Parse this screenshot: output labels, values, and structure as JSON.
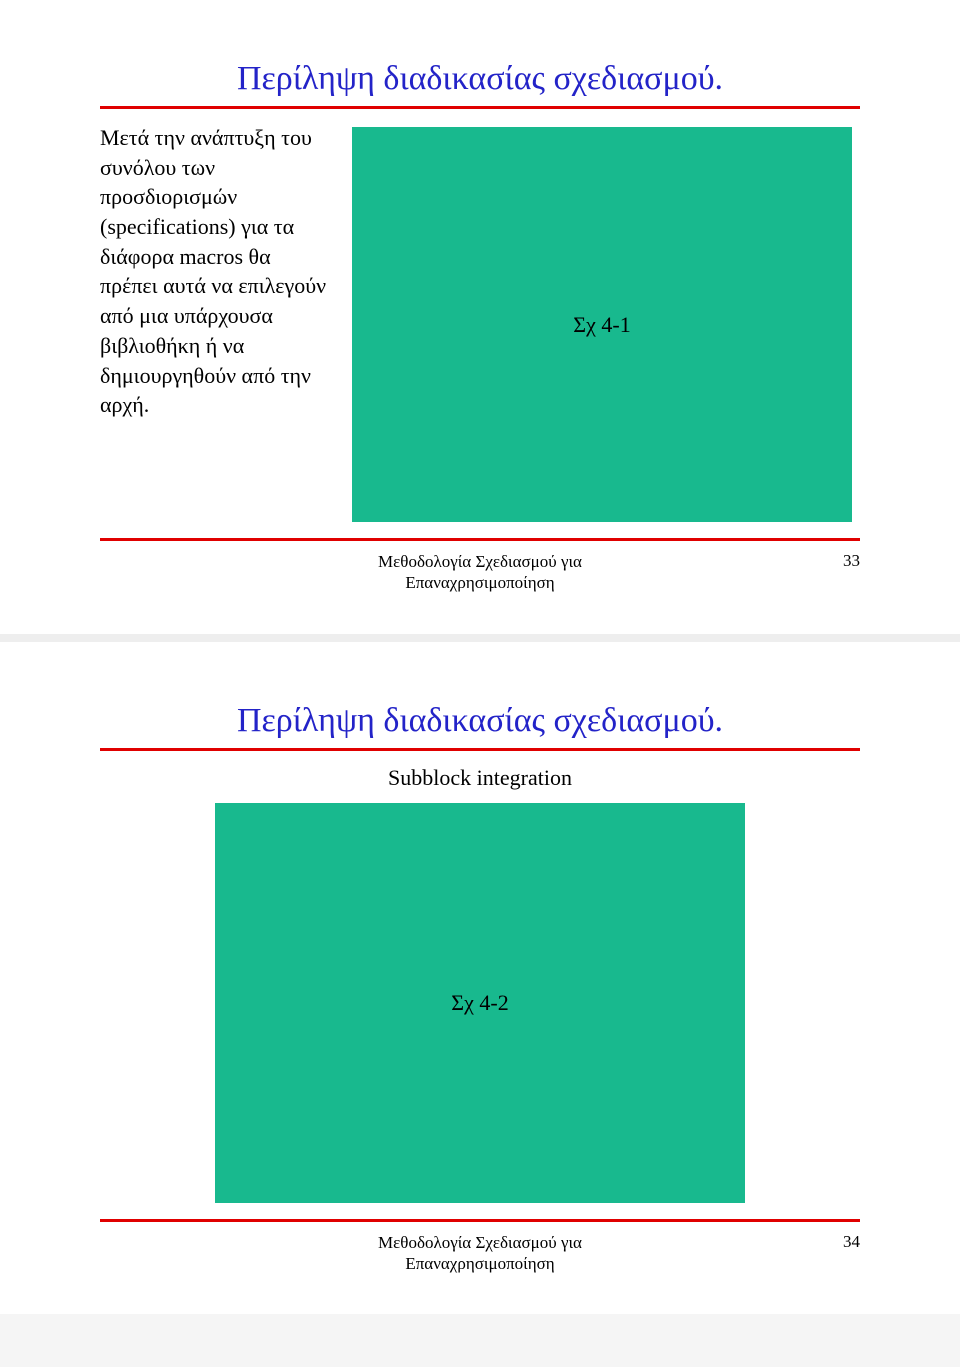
{
  "slide1": {
    "title": "Περίληψη διαδικασίας σχεδιασμού.",
    "paragraph": "Μετά την ανάπτυξη του συνόλου των προσδιορισμών (specifications) για τα διάφορα macros θα πρέπει αυτά να επιλεγούν από μια υπάρχουσα βιβλιοθήκη ή να δημιουργηθούν από την αρχή.",
    "figure_label": "Σχ 4-1",
    "footer_line1": "Μεθοδολογία Σχεδιασμού για",
    "footer_line2": "Επαναχρησιμοποίηση",
    "page_number": "33"
  },
  "slide2": {
    "title": "Περίληψη διαδικασίας σχεδιασμού.",
    "subtitle": "Subblock integration",
    "figure_label": "Σχ 4-2",
    "footer_line1": "Μεθοδολογία Σχεδιασμού για",
    "footer_line2": "Επαναχρησιμοποίηση",
    "page_number": "34"
  },
  "colors": {
    "title_color": "#2323c8",
    "rule_color": "#e00000",
    "figure_bg": "#18b98e",
    "text_color": "#000000",
    "page_bg": "#ffffff"
  }
}
